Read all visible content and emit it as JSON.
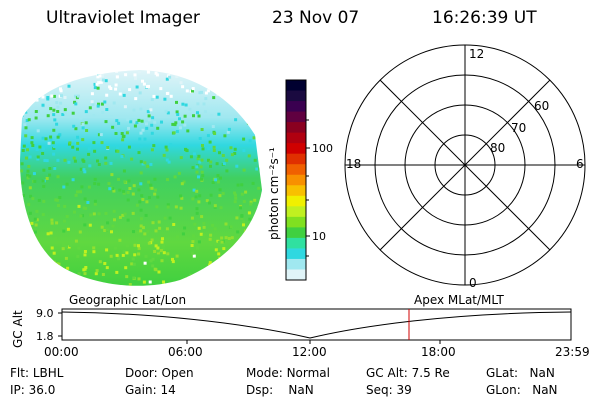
{
  "header": {
    "instrument": "Ultraviolet Imager",
    "date": "23 Nov 07",
    "time": "16:26:39 UT"
  },
  "colorbar": {
    "label": "photon cm⁻²s⁻¹",
    "ticks": [
      "100",
      "10"
    ],
    "colors": [
      "#000030",
      "#1a0a40",
      "#3a0050",
      "#600040",
      "#8a0020",
      "#b00010",
      "#d00000",
      "#e03000",
      "#f06000",
      "#f89000",
      "#f8c000",
      "#f0f000",
      "#c0f020",
      "#80e020",
      "#40d040",
      "#30e0a0",
      "#30d8e0",
      "#a0e8f0",
      "#e0f4f8"
    ]
  },
  "polar_plot": {
    "mlt_labels": {
      "top": "12",
      "bottom": "0",
      "left": "18",
      "right": "6"
    },
    "lat_labels": [
      "60",
      "70",
      "80"
    ]
  },
  "timeline": {
    "ylabel": "GC Alt",
    "yticks": [
      "9.0",
      "1.8"
    ],
    "left_title": "Geographic Lat/Lon",
    "right_title": "Apex MLat/MLT",
    "time_ticks": [
      "00:00",
      "06:00",
      "12:00",
      "18:00",
      "23:59"
    ],
    "marker_time": "16:26"
  },
  "status": {
    "row1": [
      {
        "label": "Flt:",
        "value": "LBHL"
      },
      {
        "label": "Door:",
        "value": "Open"
      },
      {
        "label": "Mode:",
        "value": "Normal"
      },
      {
        "label": "GC Alt:",
        "value": "7.5 Re"
      },
      {
        "label": "GLat:",
        "value": "NaN"
      }
    ],
    "row2": [
      {
        "label": "IP:",
        "value": "36.0"
      },
      {
        "label": "Gain:",
        "value": "14"
      },
      {
        "label": "Dsp:",
        "value": "NaN"
      },
      {
        "label": "Seq:",
        "value": "39"
      },
      {
        "label": "GLon:",
        "value": "NaN"
      }
    ]
  }
}
